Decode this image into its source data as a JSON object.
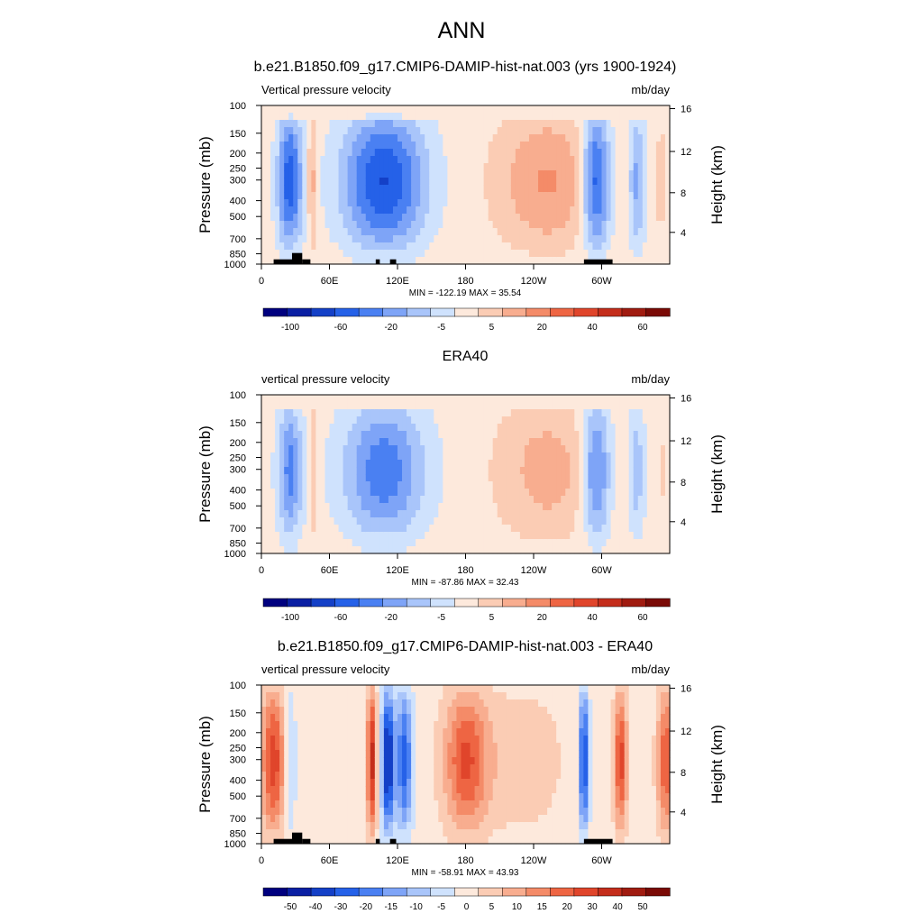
{
  "figure_title": "ANN",
  "colors": {
    "diverging_21": [
      "#00007f",
      "#0a1fa3",
      "#1440c7",
      "#2561e8",
      "#4a80f2",
      "#7ea4f7",
      "#a9c5fa",
      "#cfe2fd",
      "#fde9dc",
      "#fbccb4",
      "#f8ad8f",
      "#f48b68",
      "#ee6543",
      "#e0452b",
      "#c42d1b",
      "#a01b10",
      "#7a0a06"
    ]
  },
  "chart_data": [
    {
      "type": "heatmap",
      "title": "b.e21.B1850.f09_g17.CMIP6-DAMIP-hist-nat.003 (yrs 1900-1924)",
      "left_label": "Vertical pressure velocity",
      "right_label": "mb/day",
      "ylabel": "Pressure (mb)",
      "ylabel_right": "Height (km)",
      "x_ticks": [
        "0",
        "60E",
        "120E",
        "180",
        "120W",
        "60W"
      ],
      "y_ticks": [
        "100",
        "150",
        "200",
        "250",
        "300",
        "400",
        "500",
        "700",
        "850",
        "1000"
      ],
      "y_right_ticks": [
        "16",
        "12",
        "8",
        "4"
      ],
      "stats": "MIN = -122.19  MAX =  35.54",
      "colorbar_labels": [
        "-100",
        "-60",
        "-20",
        "-5",
        "5",
        "20",
        "40",
        "60"
      ],
      "value_range": [
        -122.19,
        35.54
      ],
      "grid": false
    },
    {
      "type": "heatmap",
      "title": "ERA40",
      "left_label": "vertical pressure velocity",
      "right_label": "mb/day",
      "ylabel": "Pressure (mb)",
      "ylabel_right": "Height (km)",
      "x_ticks": [
        "0",
        "60E",
        "120E",
        "180",
        "120W",
        "60W"
      ],
      "y_ticks": [
        "100",
        "150",
        "200",
        "250",
        "300",
        "400",
        "500",
        "700",
        "850",
        "1000"
      ],
      "y_right_ticks": [
        "16",
        "12",
        "8",
        "4"
      ],
      "stats": "MIN = -87.86  MAX =  32.43",
      "colorbar_labels": [
        "-100",
        "-60",
        "-20",
        "-5",
        "5",
        "20",
        "40",
        "60"
      ],
      "value_range": [
        -87.86,
        32.43
      ],
      "grid": false
    },
    {
      "type": "heatmap",
      "title": "b.e21.B1850.f09_g17.CMIP6-DAMIP-hist-nat.003 - ERA40",
      "left_label": "vertical pressure velocity",
      "right_label": "mb/day",
      "ylabel": "Pressure (mb)",
      "ylabel_right": "Height (km)",
      "x_ticks": [
        "0",
        "60E",
        "120E",
        "180",
        "120W",
        "60W"
      ],
      "y_ticks": [
        "100",
        "150",
        "200",
        "250",
        "300",
        "400",
        "500",
        "700",
        "850",
        "1000"
      ],
      "y_right_ticks": [
        "16",
        "12",
        "8",
        "4"
      ],
      "stats": "MIN = -58.91  MAX =  43.93",
      "colorbar_labels": [
        "-50",
        "-40",
        "-30",
        "-20",
        "-15",
        "-10",
        "-5",
        "0",
        "5",
        "10",
        "15",
        "20",
        "30",
        "40",
        "50"
      ],
      "value_range": [
        -58.91,
        43.93
      ],
      "grid": false
    }
  ]
}
